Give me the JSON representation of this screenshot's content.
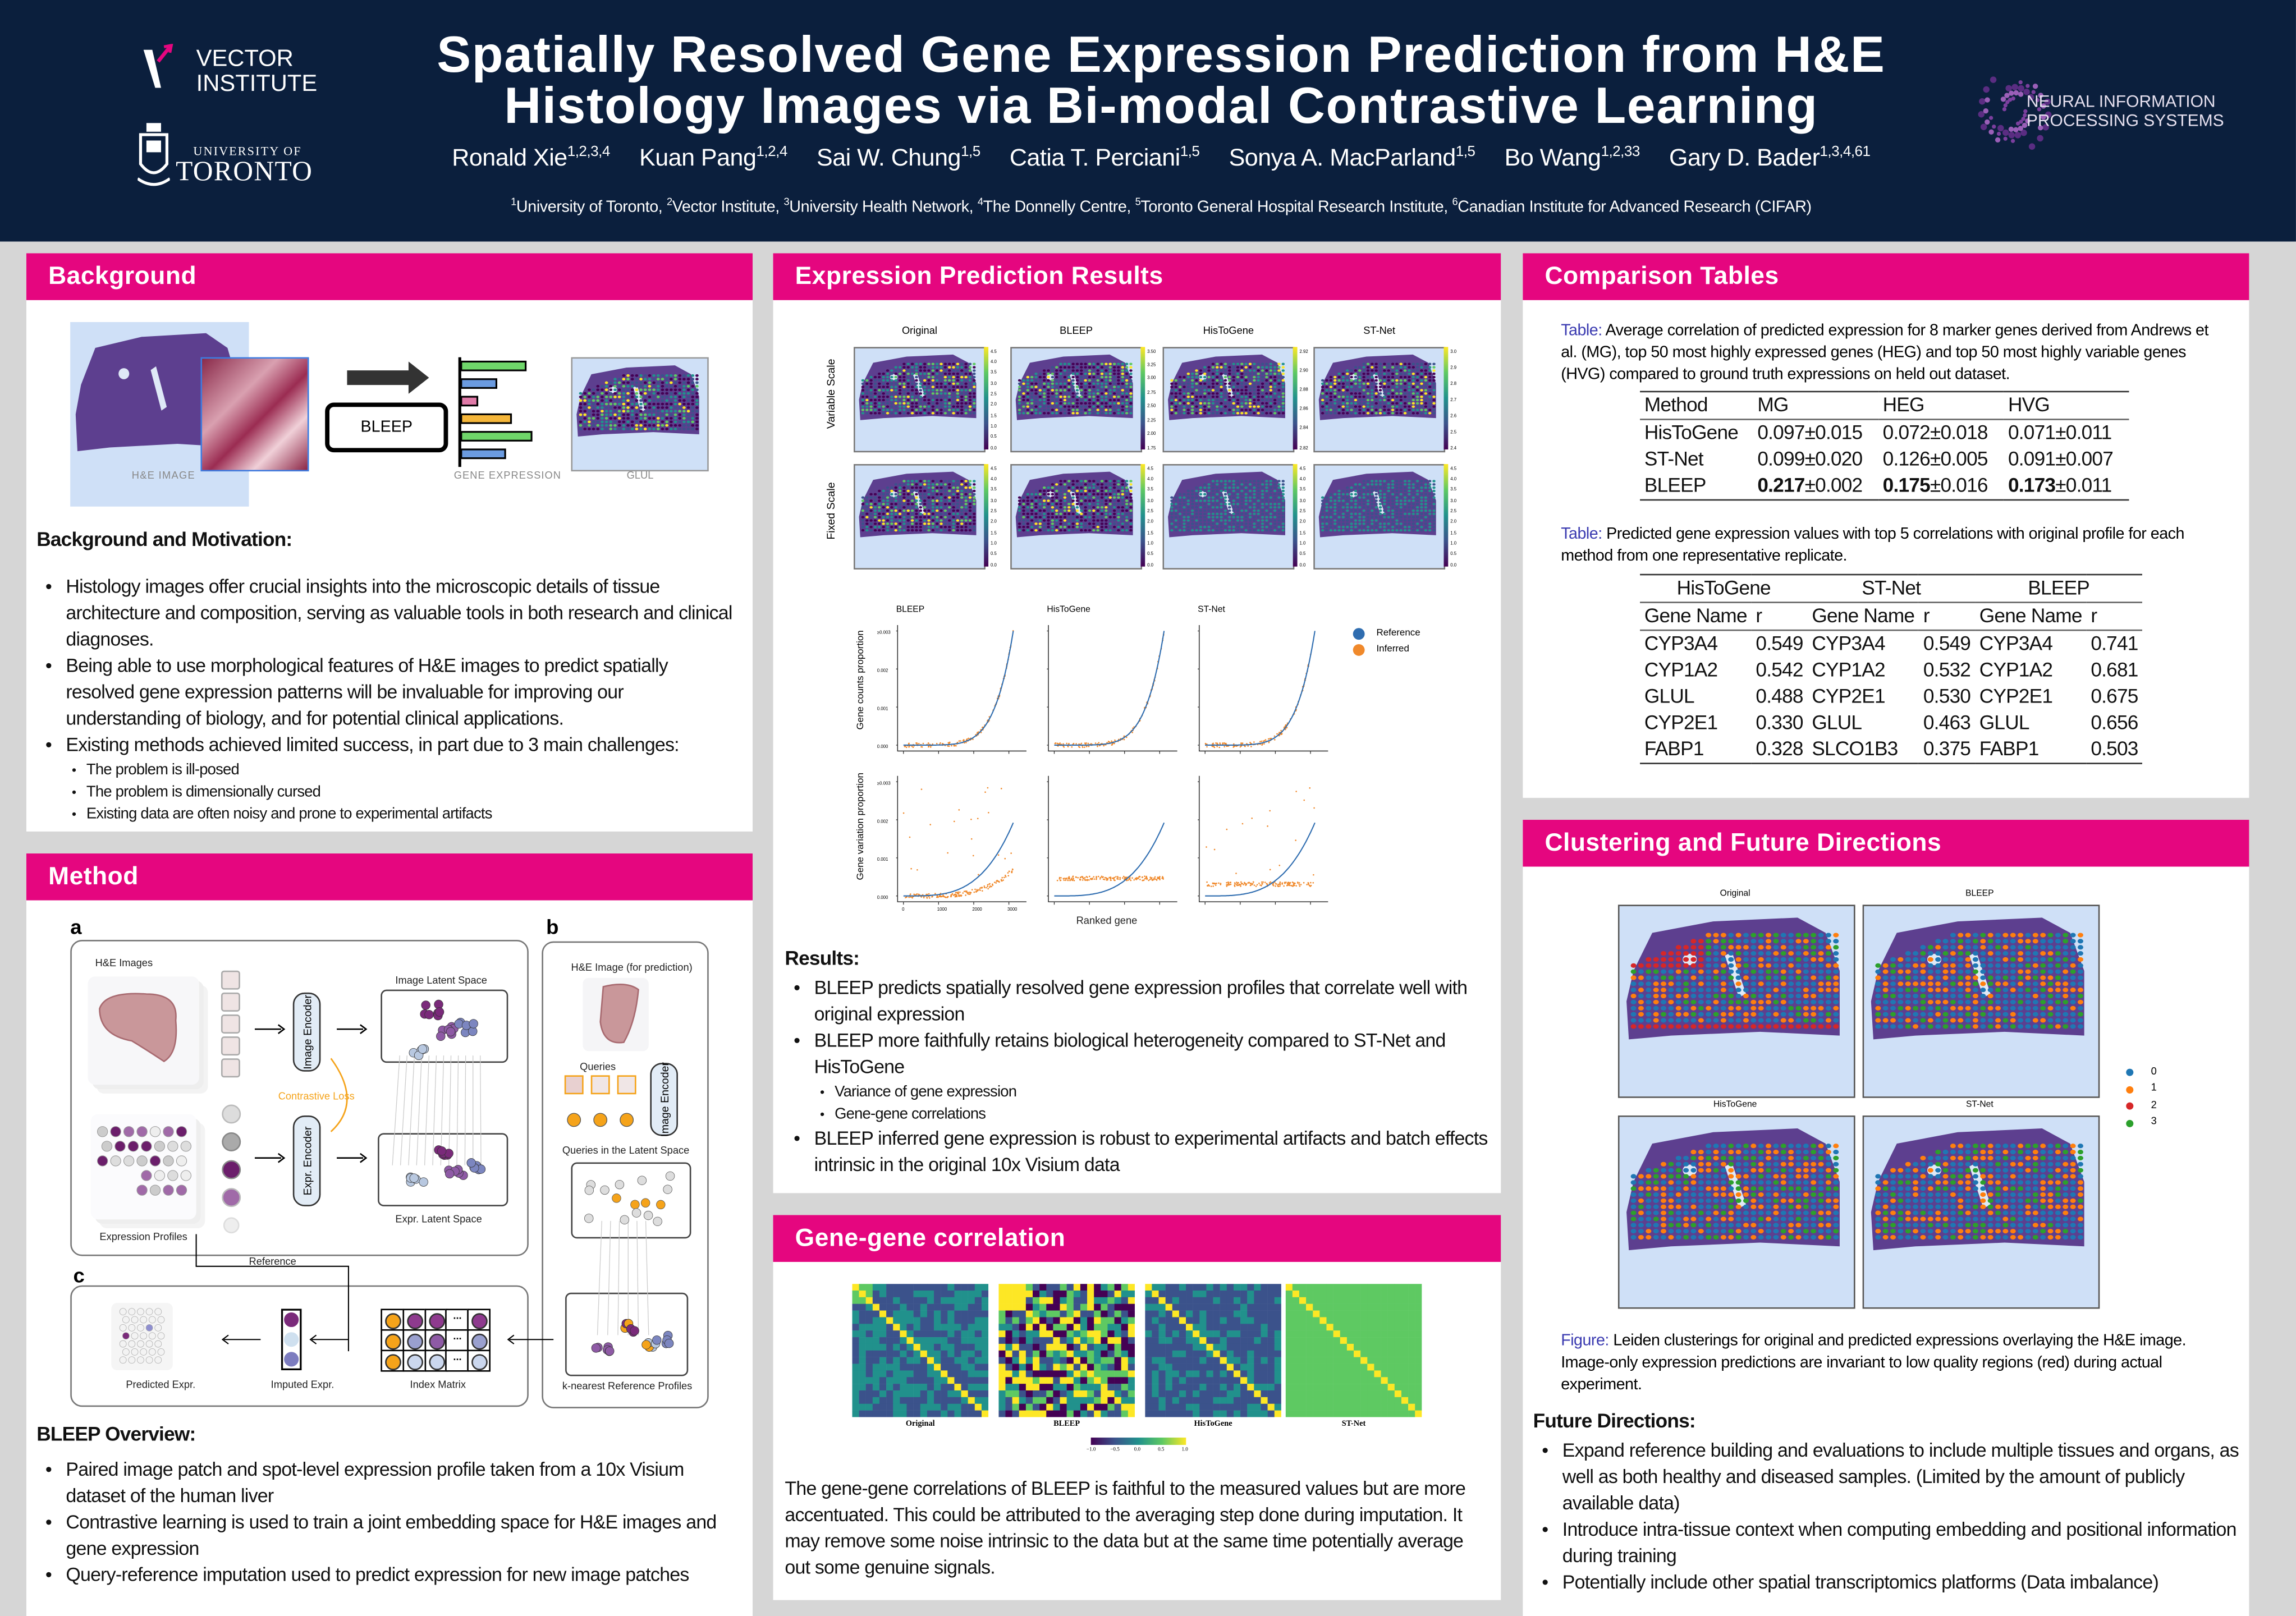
{
  "header": {
    "title_line1": "Spatially Resolved Gene Expression Prediction from H&E",
    "title_line2": "Histology Images via Bi-modal Contrastive Learning",
    "authors": [
      {
        "name": "Ronald Xie",
        "sup": "1,2,3,4"
      },
      {
        "name": "Kuan Pang",
        "sup": "1,2,4"
      },
      {
        "name": "Sai W. Chung",
        "sup": "1,5"
      },
      {
        "name": "Catia T. Perciani",
        "sup": "1,5"
      },
      {
        "name": "Sonya A. MacParland",
        "sup": "1,5"
      },
      {
        "name": "Bo Wang",
        "sup": "1,2,33"
      },
      {
        "name": "Gary D. Bader",
        "sup": "1,3,4,61"
      }
    ],
    "affiliations": [
      {
        "sup": "1",
        "text": "University of Toronto, "
      },
      {
        "sup": "2",
        "text": "Vector Institute, "
      },
      {
        "sup": "3",
        "text": "University Health Network, "
      },
      {
        "sup": "4",
        "text": "The Donnelly Centre, "
      },
      {
        "sup": "5",
        "text": "Toronto General Hospital Research Institute, "
      },
      {
        "sup": "6",
        "text": "Canadian Institute for Advanced Research (CIFAR)"
      }
    ],
    "logos": {
      "vector_line1": "VECTOR",
      "vector_line2": "INSTITUTE",
      "uoft_line1": "UNIVERSITY OF",
      "uoft_line2": "TORONTO",
      "neurips_line1": "NEURAL INFORMATION",
      "neurips_line2": "PROCESSING SYSTEMS"
    }
  },
  "colors": {
    "header_bg": "#0b1f3d",
    "section_bar": "#e5067f",
    "caption_label": "#3a3ab0",
    "reference": "#2f6db0",
    "inferred": "#f0892b",
    "clusters": [
      "#1f77b4",
      "#ff7f0e",
      "#d62728",
      "#2ca02c"
    ]
  },
  "background": {
    "title": "Background",
    "figure": {
      "he_label": "H&E Image",
      "bleep_label": "BLEEP",
      "gene_expr_label": "Gene Expression",
      "glul_label": "GLUL"
    },
    "heading": "Background and Motivation:",
    "bullets": [
      "Histology images offer crucial insights into the microscopic details of tissue architecture and composition, serving as valuable tools in both research and clinical diagnoses.",
      "Being able to use morphological features of H&E images to predict spatially resolved gene expression patterns will be invaluable for improving our understanding of biology, and for potential clinical applications.",
      "Existing methods achieved limited success, in part due to 3 main challenges:"
    ],
    "sub_bullets": [
      "The problem is ill-posed",
      "The problem is dimensionally cursed",
      "Existing data are often noisy and prone to experimental artifacts"
    ]
  },
  "method": {
    "title": "Method",
    "figure": {
      "a": "a",
      "b": "b",
      "c": "c",
      "he_images": "H&E Images",
      "image_encoder": "Image Encoder",
      "image_latent": "Image Latent Space",
      "contrastive_loss": "Contrastive Loss",
      "expr_encoder": "Expr. Encoder",
      "expr_latent": "Expr. Latent Space",
      "expression_profiles": "Expression Profiles",
      "he_image_pred": "H&E Image (for prediction)",
      "queries": "Queries",
      "image_encoder_b": "Image Encoder",
      "queries_latent": "Queries in the Latent Space",
      "knn_profiles": "k-nearest Reference Profiles",
      "reference": "Reference",
      "predicted": "Predicted Expr.",
      "imputed": "Imputed Expr.",
      "index_matrix": "Index Matrix",
      "ellipsis": "..."
    },
    "heading": "BLEEP Overview:",
    "bullets": [
      "Paired image patch and spot-level expression profile taken from a 10x Visium dataset of the human liver",
      "Contrastive learning is used to train a joint embedding space for H&E images and gene expression",
      "Query-reference imputation used to predict expression for new image patches"
    ]
  },
  "results": {
    "title": "Expression Prediction Results",
    "map_columns": [
      "Original",
      "BLEEP",
      "HisToGene",
      "ST-Net"
    ],
    "row_labels": [
      "Variable Scale",
      "Fixed Scale"
    ],
    "colorbar_ticks_variable": [
      [
        "0.0",
        "0.5",
        "1.0",
        "1.5",
        "2.0",
        "2.5",
        "3.0",
        "3.5",
        "4.0",
        "4.5"
      ],
      [
        "1.75",
        "2.00",
        "2.25",
        "2.50",
        "2.75",
        "3.00",
        "3.25",
        "3.50"
      ],
      [
        "2.82",
        "2.84",
        "2.86",
        "2.88",
        "2.90",
        "2.92"
      ],
      [
        "2.4",
        "2.5",
        "2.6",
        "2.7",
        "2.8",
        "2.9",
        "3.0"
      ]
    ],
    "colorbar_ticks_fixed": [
      "0.0",
      "0.5",
      "1.0",
      "1.5",
      "2.0",
      "2.5",
      "3.0",
      "3.5",
      "4.0",
      "4.5"
    ],
    "scatter_columns": [
      "BLEEP",
      "HisToGene",
      "ST-Net"
    ],
    "scatter_ylabels": [
      "Gene counts proportion",
      "Gene variation proportion"
    ],
    "scatter_yticks": [
      "0.000",
      "0.001",
      "0.002",
      "≥0.003"
    ],
    "scatter_xticks": [
      "0",
      "1000",
      "2000",
      "3000"
    ],
    "scatter_xlabel": "Ranked gene",
    "legend": [
      "Reference",
      "Inferred"
    ],
    "heading": "Results:",
    "bullets": [
      "BLEEP predicts spatially resolved gene expression profiles that correlate well with original expression",
      "BLEEP more faithfully retains biological heterogeneity compared to ST-Net and HisToGene",
      "BLEEP inferred gene expression is robust to experimental artifacts and batch effects intrinsic in the original 10x Visium data"
    ],
    "sub_bullets": [
      "Variance of gene expression",
      "Gene-gene correlations"
    ]
  },
  "genegene": {
    "title": "Gene-gene correlation",
    "labels": [
      "Original",
      "BLEEP",
      "HisToGene",
      "ST-Net"
    ],
    "colorbar_ticks": [
      "−1.0",
      "−0.5",
      "0.0",
      "0.5",
      "1.0"
    ],
    "text": "The gene-gene correlations of BLEEP is faithful to the measured values but are more accentuated.  This could be attributed to the averaging step done during imputation.  It may remove some noise intrinsic to the data but at the same time potentially average out some genuine signals."
  },
  "comparison": {
    "title": "Comparison Tables",
    "caption1_label": "Table:",
    "caption1": " Average correlation of predicted expression for 8 marker genes derived from Andrews et al. (MG), top 50 most highly expressed genes (HEG) and top 50 most highly variable genes (HVG) compared to ground truth expressions on held out dataset.",
    "table1": {
      "headers": [
        "Method",
        "MG",
        "HEG",
        "HVG"
      ],
      "rows": [
        {
          "method": "HisToGene",
          "cells": [
            [
              "0.097",
              "±0.015"
            ],
            [
              "0.072",
              "±0.018"
            ],
            [
              "0.071",
              "±0.011"
            ]
          ],
          "bold": false
        },
        {
          "method": "ST-Net",
          "cells": [
            [
              "0.099",
              "±0.020"
            ],
            [
              "0.126",
              "±0.005"
            ],
            [
              "0.091",
              "±0.007"
            ]
          ],
          "bold": false
        },
        {
          "method": "BLEEP",
          "cells": [
            [
              "0.217",
              "±0.002"
            ],
            [
              "0.175",
              "±0.016"
            ],
            [
              "0.173",
              "±0.011"
            ]
          ],
          "bold": true
        }
      ]
    },
    "caption2_label": "Table:",
    "caption2": " Predicted gene expression values with top 5 correlations with original profile for each method from one representative replicate.",
    "table2": {
      "groups": [
        "HisToGene",
        "ST-Net",
        "BLEEP"
      ],
      "subheaders": [
        "Gene Name",
        "r"
      ],
      "rows": [
        [
          "CYP3A4",
          "0.549",
          "CYP3A4",
          "0.549",
          "CYP3A4",
          "0.741"
        ],
        [
          "CYP1A2",
          "0.542",
          "CYP1A2",
          "0.532",
          "CYP1A2",
          "0.681"
        ],
        [
          "GLUL",
          "0.488",
          "CYP2E1",
          "0.530",
          "CYP2E1",
          "0.675"
        ],
        [
          "CYP2E1",
          "0.330",
          "GLUL",
          "0.463",
          "GLUL",
          "0.656"
        ],
        [
          "FABP1",
          "0.328",
          "SLCO1B3",
          "0.375",
          "FABP1",
          "0.503"
        ]
      ]
    }
  },
  "clustering": {
    "title": "Clustering and Future Directions",
    "map_titles": [
      "Original",
      "BLEEP",
      "HisToGene",
      "ST-Net"
    ],
    "legend": [
      "0",
      "1",
      "2",
      "3"
    ],
    "caption_label": "Figure:",
    "caption": " Leiden clusterings for original and predicted expressions overlaying the H&E image. Image-only expression predictions are invariant to low quality regions (red) during actual experiment.",
    "heading": "Future Directions:",
    "bullets": [
      "Expand reference building and evaluations to include multiple tissues and organs, as well as both healthy and diseased samples.  (Limited by the amount of publicly available data)",
      "Introduce intra-tissue context when computing embedding and positional information during training",
      "Potentially include other spatial transcriptomics platforms (Data imbalance)"
    ]
  }
}
